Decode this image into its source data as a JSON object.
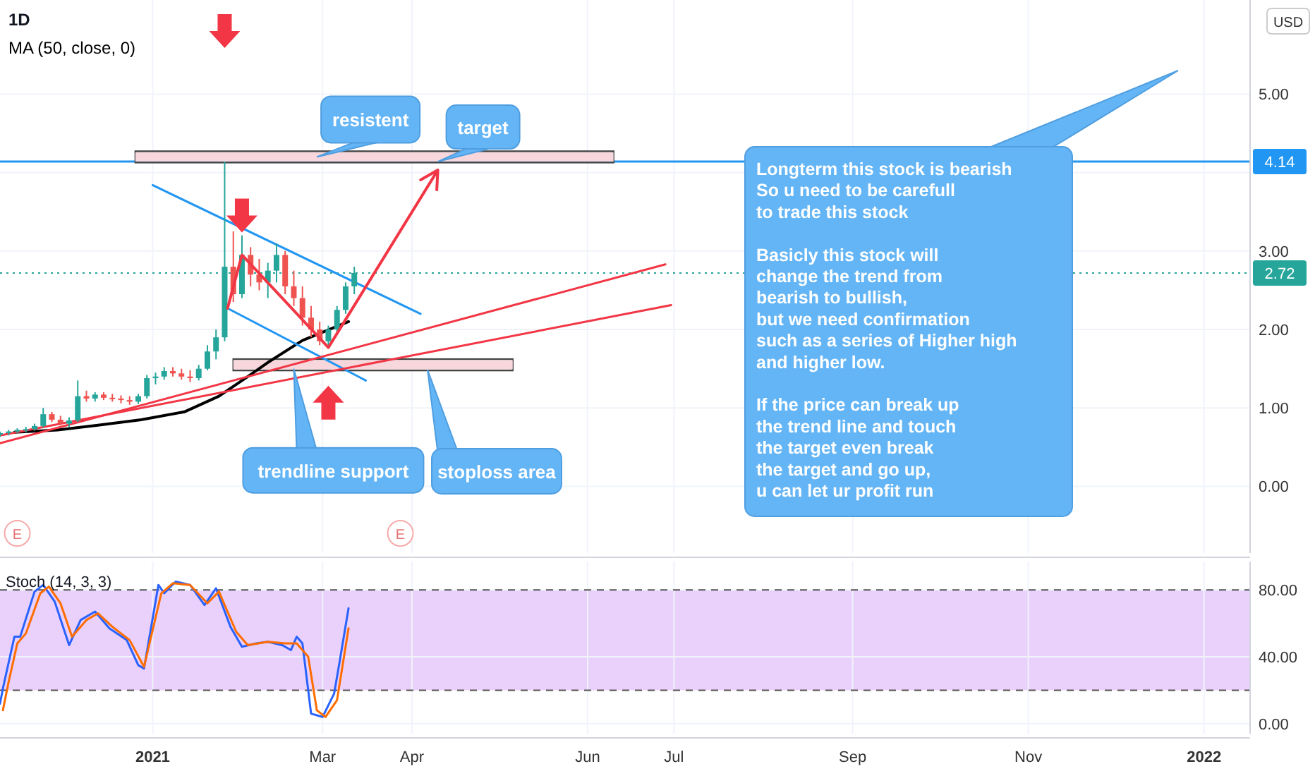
{
  "chart_data": [
    {
      "type": "candlestick",
      "title": "1D",
      "ylabel": "USD",
      "legend": "top left",
      "grid": true,
      "marker": "none",
      "tick_labels": "y",
      "xlim": [
        "2020-11-09",
        "2022-01-17"
      ],
      "ylim": [
        -0.85,
        6.2
      ],
      "xticks": [
        {
          "value": "2021-01-01",
          "label": null
        },
        {
          "value": "2021-03-01",
          "label": null
        },
        {
          "value": "2021-04-01",
          "label": null
        },
        {
          "value": "2021-06-01",
          "label": null
        },
        {
          "value": "2021-07-01",
          "label": null
        },
        {
          "value": "2021-09-01",
          "label": null
        },
        {
          "value": "2021-11-01",
          "label": null
        },
        {
          "value": "2022-01-01",
          "label": null
        }
      ],
      "yticks": [
        {
          "value": 0,
          "label": "0.00"
        },
        {
          "value": 1,
          "label": "1.00"
        },
        {
          "value": 2,
          "label": "2.00"
        },
        {
          "value": 3,
          "label": "3.00"
        },
        {
          "value": 4,
          "label": null
        },
        {
          "value": 5,
          "label": "5.00"
        }
      ],
      "x": [
        "2020-11-09",
        "2020-11-12",
        "2020-11-15",
        "2020-11-18",
        "2020-11-21",
        "2020-11-24",
        "2020-11-27",
        "2020-11-30",
        "2020-12-03",
        "2020-12-06",
        "2020-12-09",
        "2020-12-12",
        "2020-12-15",
        "2020-12-18",
        "2020-12-21",
        "2020-12-24",
        "2020-12-27",
        "2020-12-30",
        "2021-01-02",
        "2021-01-05",
        "2021-01-08",
        "2021-01-11",
        "2021-01-14",
        "2021-01-17",
        "2021-01-20",
        "2021-01-23",
        "2021-01-26",
        "2021-01-29",
        "2021-02-01",
        "2021-02-04",
        "2021-02-07",
        "2021-02-10",
        "2021-02-13",
        "2021-02-16",
        "2021-02-19",
        "2021-02-22",
        "2021-02-25",
        "2021-02-28",
        "2021-03-03",
        "2021-03-06",
        "2021-03-09",
        "2021-03-12"
      ],
      "ohlc": [
        [
          0.66,
          0.7,
          0.63,
          0.68
        ],
        [
          0.68,
          0.72,
          0.65,
          0.7
        ],
        [
          0.7,
          0.74,
          0.68,
          0.72
        ],
        [
          0.72,
          0.76,
          0.69,
          0.73
        ],
        [
          0.73,
          0.8,
          0.71,
          0.77
        ],
        [
          0.77,
          1.0,
          0.75,
          0.92
        ],
        [
          0.92,
          0.95,
          0.82,
          0.85
        ],
        [
          0.85,
          0.9,
          0.78,
          0.8
        ],
        [
          0.8,
          0.88,
          0.76,
          0.84
        ],
        [
          0.84,
          1.35,
          0.82,
          1.15
        ],
        [
          1.15,
          1.22,
          1.08,
          1.12
        ],
        [
          1.12,
          1.2,
          1.08,
          1.17
        ],
        [
          1.17,
          1.2,
          1.1,
          1.13
        ],
        [
          1.13,
          1.18,
          1.08,
          1.12
        ],
        [
          1.12,
          1.16,
          1.06,
          1.1
        ],
        [
          1.1,
          1.15,
          1.04,
          1.08
        ],
        [
          1.08,
          1.18,
          1.05,
          1.15
        ],
        [
          1.15,
          1.42,
          1.12,
          1.38
        ],
        [
          1.38,
          1.45,
          1.3,
          1.4
        ],
        [
          1.4,
          1.52,
          1.36,
          1.47
        ],
        [
          1.47,
          1.52,
          1.4,
          1.44
        ],
        [
          1.44,
          1.5,
          1.36,
          1.4
        ],
        [
          1.4,
          1.48,
          1.33,
          1.38
        ],
        [
          1.38,
          1.55,
          1.35,
          1.5
        ],
        [
          1.5,
          1.8,
          1.48,
          1.72
        ],
        [
          1.72,
          2.0,
          1.62,
          1.9
        ],
        [
          1.9,
          4.14,
          1.85,
          2.8
        ],
        [
          2.8,
          3.25,
          2.35,
          2.45
        ],
        [
          2.45,
          3.2,
          2.4,
          2.95
        ],
        [
          2.95,
          3.05,
          2.55,
          2.7
        ],
        [
          2.7,
          2.9,
          2.5,
          2.6
        ],
        [
          2.6,
          2.85,
          2.4,
          2.75
        ],
        [
          2.75,
          3.1,
          2.6,
          2.95
        ],
        [
          2.95,
          3.0,
          2.45,
          2.55
        ],
        [
          2.55,
          2.75,
          2.3,
          2.4
        ],
        [
          2.4,
          2.55,
          2.05,
          2.15
        ],
        [
          2.15,
          2.3,
          1.9,
          2.0
        ],
        [
          2.0,
          2.1,
          1.8,
          1.85
        ],
        [
          1.85,
          2.05,
          1.77,
          2.0
        ],
        [
          2.0,
          2.3,
          1.95,
          2.25
        ],
        [
          2.25,
          2.6,
          2.2,
          2.55
        ],
        [
          2.55,
          2.8,
          2.45,
          2.72
        ]
      ],
      "series": [
        {
          "type": "line",
          "color": "#f7d6dc",
          "x": [
            "2020-12-26",
            "2021-06-10"
          ],
          "values": [
            4.2,
            4.2
          ]
        },
        {
          "type": "line",
          "color": "#f7d6dc",
          "x": [
            "2021-01-29",
            "2021-05-06"
          ],
          "values": [
            1.55,
            1.55
          ]
        },
        {
          "type": "line",
          "name": "MA (50, close, 0)",
          "color": "#000000",
          "x": [
            "2020-11-14",
            "2020-11-29",
            "2020-12-13",
            "2020-12-28",
            "2021-01-12",
            "2021-01-24",
            "2021-02-03",
            "2021-02-10",
            "2021-02-22",
            "2021-03-10"
          ],
          "values": [
            0.69,
            0.72,
            0.78,
            0.85,
            0.95,
            1.15,
            1.4,
            1.58,
            1.86,
            2.1
          ]
        },
        {
          "type": "line",
          "color": "#2196f3",
          "x": [
            "2021-01-01",
            "2021-04-04"
          ],
          "values": [
            3.84,
            2.2
          ]
        },
        {
          "type": "line",
          "color": "#2196f3",
          "x": [
            "2021-01-27",
            "2021-03-16"
          ],
          "values": [
            2.27,
            1.35
          ]
        },
        {
          "type": "line",
          "color": "#f23645",
          "x": [
            "2020-11-09",
            "2021-06-28"
          ],
          "values": [
            0.55,
            2.83
          ]
        },
        {
          "type": "line",
          "color": "#f23645",
          "x": [
            "2020-11-09",
            "2021-06-30"
          ],
          "values": [
            0.65,
            2.31
          ]
        }
      ],
      "ref_lines": [
        {
          "axis": "y",
          "value": 4.14,
          "label": "4.14",
          "color": "#2196f3",
          "line_style": "solid"
        },
        {
          "axis": "y",
          "value": 2.72,
          "label": "2.72",
          "color": "#26a69a",
          "line_style": "dotted"
        }
      ],
      "annotations": [
        {
          "text": "resistent",
          "x": "2021-02-27",
          "y": 4.2
        },
        {
          "text": "target",
          "x": "2021-04-10",
          "y": 4.14
        },
        {
          "text": "trendline support",
          "x": "2021-02-19",
          "y": 1.5
        },
        "stoploss area",
        "Longterm this stock is bearish\nSo u need to be carefull\nto trade this stock\n\nBasicly this stock will\nchange the trend from\nbearish to bullish,\nbut we need confirmation\nsuch as a series of Higher high\nand higher low.\n\nIf the price can break up\nthe trend line and touch\nthe target even break\nthe target and go up,\nu can let ur profit run",
        {
          "text": "E",
          "x": "2020-11-15"
        },
        {
          "text": "E",
          "x": "2021-03-28"
        }
      ]
    },
    {
      "type": "line",
      "title": "Stoch (14, 3, 3)",
      "grid": true,
      "marker": "none",
      "xlim": [
        "2020-11-09",
        "2022-01-17"
      ],
      "ylim": [
        -6,
        97
      ],
      "xticks": [
        {
          "value": "2021-01-01",
          "label": "2021"
        },
        {
          "value": "2021-03-01",
          "label": "Mar"
        },
        {
          "value": "2021-04-01",
          "label": "Apr"
        },
        {
          "value": "2021-06-01",
          "label": "Jun"
        },
        {
          "value": "2021-07-01",
          "label": "Jul"
        },
        {
          "value": "2021-09-01",
          "label": "Sep"
        },
        {
          "value": "2021-11-01",
          "label": "Nov"
        },
        {
          "value": "2022-01-01",
          "label": "2022"
        }
      ],
      "yticks": [
        {
          "value": 0,
          "label": "0.00"
        },
        {
          "value": 40,
          "label": "40.00"
        },
        {
          "value": 80,
          "label": "80.00"
        }
      ],
      "bands": [
        {
          "axis": "y",
          "from": 20,
          "to": 80,
          "color": "#ead1fb"
        }
      ],
      "ref_lines": [
        {
          "axis": "y",
          "value": 80,
          "color": "#555555",
          "line_style": "dashed"
        },
        {
          "axis": "y",
          "value": 20,
          "color": "#555555",
          "line_style": "dashed"
        }
      ],
      "series": [
        {
          "color": "#2962ff",
          "x": [
            "2020-11-09",
            "2020-11-10",
            "2020-11-14",
            "2020-11-16",
            "2020-11-21",
            "2020-11-24",
            "2020-11-28",
            "2020-12-03",
            "2020-12-07",
            "2020-12-12",
            "2020-12-17",
            "2020-12-23",
            "2020-12-27",
            "2020-12-29",
            "2021-01-03",
            "2021-01-05",
            "2021-01-09",
            "2021-01-14",
            "2021-01-19",
            "2021-01-23",
            "2021-01-28",
            "2021-02-01",
            "2021-02-06",
            "2021-02-10",
            "2021-02-15",
            "2021-02-18",
            "2021-02-20",
            "2021-02-22",
            "2021-02-25",
            "2021-03-01",
            "2021-03-05",
            "2021-03-07",
            "2021-03-10"
          ],
          "values": [
            12,
            21,
            52,
            52,
            79,
            83,
            73,
            47,
            62,
            67,
            57,
            50,
            35,
            33,
            83,
            78,
            85,
            83,
            71,
            81,
            58,
            46,
            48,
            49,
            47,
            44,
            52,
            48,
            6,
            4,
            18,
            38,
            69
          ]
        },
        {
          "color": "#ff6d00",
          "x": [
            "2020-11-10",
            "2020-11-12",
            "2020-11-15",
            "2020-11-18",
            "2020-11-23",
            "2020-11-26",
            "2020-11-30",
            "2020-12-04",
            "2020-12-09",
            "2020-12-13",
            "2020-12-18",
            "2020-12-24",
            "2020-12-29",
            "2021-01-04",
            "2021-01-08",
            "2021-01-14",
            "2021-01-20",
            "2021-01-24",
            "2021-01-30",
            "2021-02-03",
            "2021-02-10",
            "2021-02-16",
            "2021-02-20",
            "2021-02-24",
            "2021-02-27",
            "2021-03-02",
            "2021-03-06",
            "2021-03-10"
          ],
          "values": [
            8,
            25,
            48,
            54,
            78,
            82,
            72,
            52,
            62,
            66,
            58,
            50,
            34,
            78,
            84,
            83,
            72,
            79,
            55,
            47,
            49,
            48,
            48,
            40,
            8,
            4,
            14,
            57
          ]
        }
      ]
    }
  ]
}
